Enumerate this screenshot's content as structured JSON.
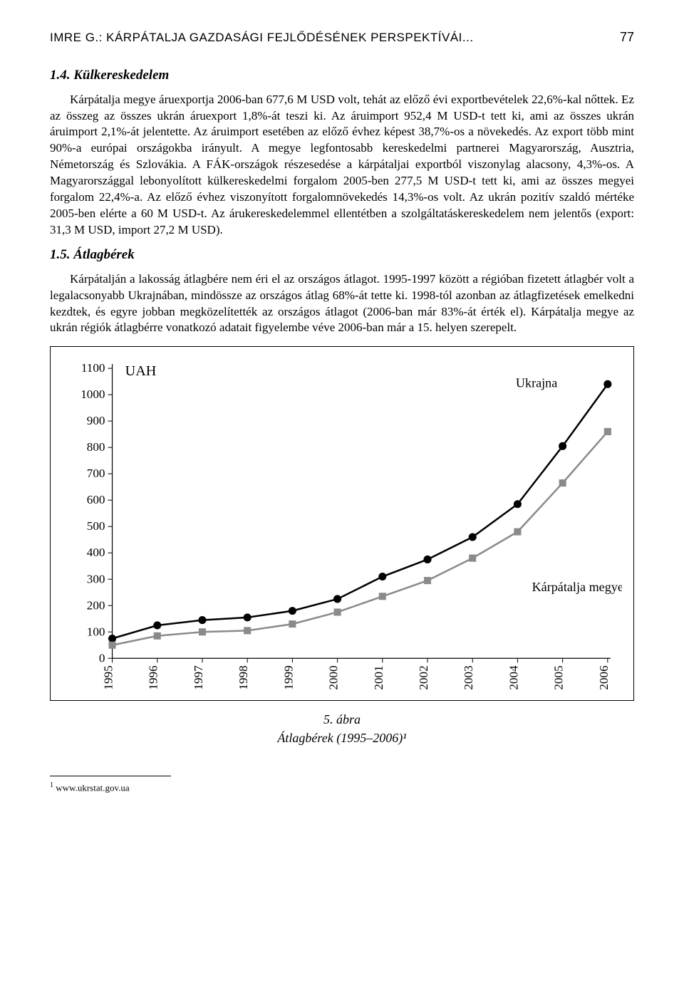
{
  "header": {
    "running_title": "IMRE G.: KÁRPÁTALJA GAZDASÁGI FEJLŐDÉSÉNEK PERSPEKTÍVÁI...",
    "page_number": "77"
  },
  "section14": {
    "heading": "1.4. Külkereskedelem",
    "paragraph": "Kárpátalja megye áruexportja 2006-ban 677,6 M USD volt, tehát az előző évi exportbevételek 22,6%-kal nőttek. Ez az összeg az összes ukrán áruexport 1,8%-át teszi ki. Az áruimport 952,4 M USD-t tett ki, ami az összes ukrán áruimport 2,1%-át jelentette. Az áruimport esetében az előző évhez képest 38,7%-os a növekedés. Az export több mint 90%-a európai országokba irányult. A megye legfontosabb kereskedelmi partnerei Magyarország, Ausztria, Németország és Szlovákia. A FÁK-országok részesedése a kárpátaljai exportból viszonylag alacsony, 4,3%-os. A Magyarországgal lebonyolított külkereskedelmi forgalom 2005-ben 277,5 M USD-t tett ki, ami az összes megyei forgalom 22,4%-a. Az előző évhez viszonyított forgalomnövekedés 14,3%-os volt. Az ukrán pozitív szaldó mértéke 2005-ben elérte a 60 M USD-t. Az árukereskedelemmel ellentétben a szolgáltatáskereskedelem nem jelentős (export: 31,3 M USD, import 27,2 M USD)."
  },
  "section15": {
    "heading": "1.5. Átlagbérek",
    "paragraph": "Kárpátalján a lakosság átlagbére nem éri el az országos átlagot. 1995-1997 között a régióban fizetett átlagbér volt a legalacsonyabb Ukrajnában, mindössze az országos átlag 68%-át tette ki. 1998-tól azonban az átlagfizetések emelkedni kezdtek, és egyre jobban megközelítették az országos átlagot (2006-ban már 83%-át érték el). Kárpátalja megye az ukrán régiók átlagbérre vonatkozó adatait figyelembe véve 2006-ban már a 15. helyen szerepelt."
  },
  "chart": {
    "type": "line",
    "y_unit_label": "UAH",
    "xvalues": [
      "1995",
      "1996",
      "1997",
      "1998",
      "1999",
      "2000",
      "2001",
      "2002",
      "2003",
      "2004",
      "2005",
      "2006"
    ],
    "ylim": [
      0,
      1100
    ],
    "ytick_step": 100,
    "series": [
      {
        "name": "Ukrajna",
        "color": "#000000",
        "marker": "circle",
        "marker_fill": "#000000",
        "line_width": 2.5,
        "values": [
          75,
          125,
          145,
          155,
          180,
          225,
          310,
          375,
          460,
          585,
          805,
          1040
        ]
      },
      {
        "name": "Kárpátalja megye",
        "color": "#8a8a8a",
        "marker": "square",
        "marker_fill": "#8a8a8a",
        "line_width": 2.5,
        "values": [
          50,
          85,
          100,
          105,
          130,
          175,
          235,
          295,
          380,
          480,
          665,
          860
        ]
      }
    ],
    "label_fontsize": 18,
    "tick_fontsize": 17,
    "background_color": "#ffffff",
    "caption_line1": "5. ábra",
    "caption_line2": "Átlagbérek (1995–2006)¹"
  },
  "footnote": {
    "marker": "1",
    "text": "www.ukrstat.gov.ua"
  }
}
